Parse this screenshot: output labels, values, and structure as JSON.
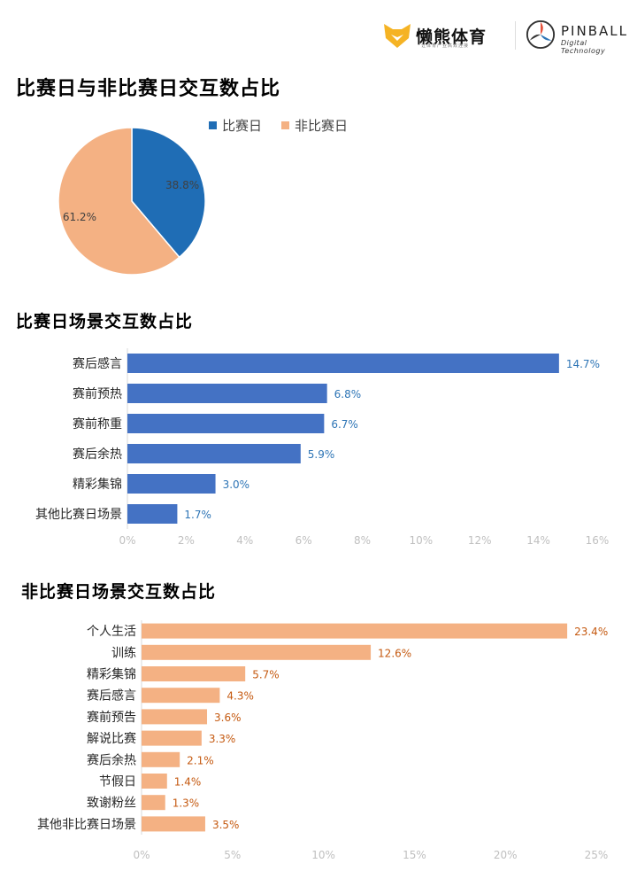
{
  "logos": {
    "lanxiong": {
      "name": "懒熊体育",
      "slogan": "让体育产业高效连接"
    },
    "pinball": {
      "name": "PINBALL",
      "sub": "Digital Technology"
    }
  },
  "colors": {
    "blue": "#4472C4",
    "darkBlue": "#1F6DB5",
    "peach": "#F4B183",
    "blueLabel": "#2E75B6",
    "orangeLabel": "#C55A11",
    "tick": "#BFBFBF"
  },
  "chart_data": [
    {
      "type": "pie",
      "title": "比赛日与非比赛日交互数占比",
      "legend_position": "top",
      "series": [
        {
          "name": "比赛日",
          "value": 38.8,
          "label": "38.8%",
          "color": "#1F6DB5"
        },
        {
          "name": "非比赛日",
          "value": 61.2,
          "label": "61.2%",
          "color": "#F4B183"
        }
      ]
    },
    {
      "type": "bar",
      "orientation": "horizontal",
      "title": "比赛日场景交互数占比",
      "categories": [
        "赛后感言",
        "赛前预热",
        "赛前称重",
        "赛后余热",
        "精彩集锦",
        "其他比赛日场景"
      ],
      "values": [
        14.7,
        6.8,
        6.7,
        5.9,
        3.0,
        1.7
      ],
      "labels": [
        "14.7%",
        "6.8%",
        "6.7%",
        "5.9%",
        "3.0%",
        "1.7%"
      ],
      "xlim": [
        0,
        16
      ],
      "xticks": [
        "0%",
        "2%",
        "4%",
        "6%",
        "8%",
        "10%",
        "12%",
        "14%",
        "16%"
      ],
      "color": "#4472C4",
      "grid": false
    },
    {
      "type": "bar",
      "orientation": "horizontal",
      "title": "非比赛日场景交互数占比",
      "categories": [
        "个人生活",
        "训练",
        "精彩集锦",
        "赛后感言",
        "赛前预告",
        "解说比赛",
        "赛后余热",
        "节假日",
        "致谢粉丝",
        "其他非比赛日场景"
      ],
      "values": [
        23.4,
        12.6,
        5.7,
        4.3,
        3.6,
        3.3,
        2.1,
        1.4,
        1.3,
        3.5
      ],
      "labels": [
        "23.4%",
        "12.6%",
        "5.7%",
        "4.3%",
        "3.6%",
        "3.3%",
        "2.1%",
        "1.4%",
        "1.3%",
        "3.5%"
      ],
      "xlim": [
        0,
        25
      ],
      "xticks": [
        "0%",
        "5%",
        "10%",
        "15%",
        "20%",
        "25%"
      ],
      "color": "#F4B183",
      "grid": false
    }
  ]
}
